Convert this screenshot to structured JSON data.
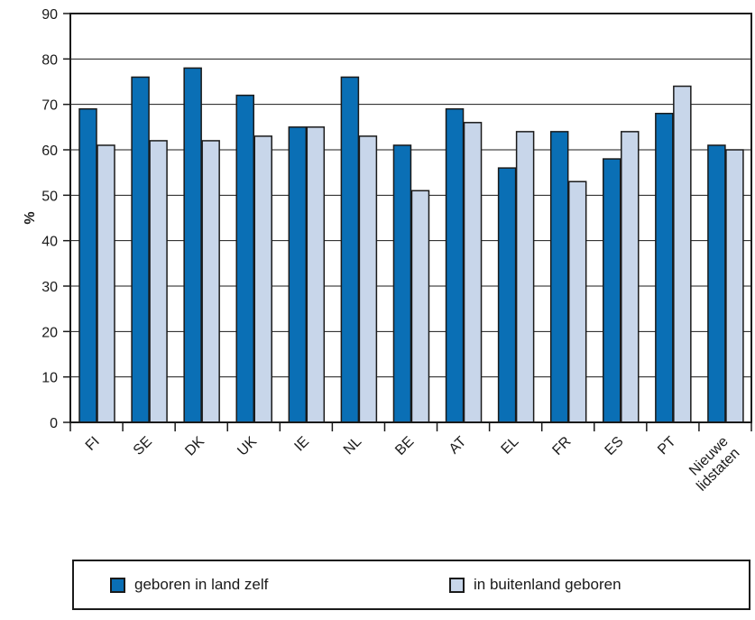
{
  "chart_data": {
    "type": "bar",
    "ylabel": "%",
    "xlabel": "",
    "title": "",
    "ylim": [
      0,
      90
    ],
    "yticks": [
      "0",
      "10",
      "20",
      "30",
      "40",
      "50",
      "60",
      "70",
      "80",
      "90"
    ],
    "categories": [
      "FI",
      "SE",
      "DK",
      "UK",
      "IE",
      "NL",
      "BE",
      "AT",
      "EL",
      "FR",
      "ES",
      "PT",
      "Nieuwe lidstaten"
    ],
    "series": [
      {
        "name": "geboren in land zelf",
        "color": "#0a6fb5",
        "values": [
          69,
          76,
          78,
          72,
          65,
          76,
          61,
          69,
          56,
          64,
          58,
          68,
          61
        ]
      },
      {
        "name": "in buitenland geboren",
        "color": "#c8d6ea",
        "values": [
          61,
          62,
          62,
          63,
          65,
          63,
          51,
          66,
          64,
          53,
          64,
          74,
          60
        ]
      }
    ],
    "grid": true,
    "legend_position": "bottom"
  },
  "legend": {
    "item1": "geboren in land zelf",
    "item2": "in buitenland geboren"
  }
}
